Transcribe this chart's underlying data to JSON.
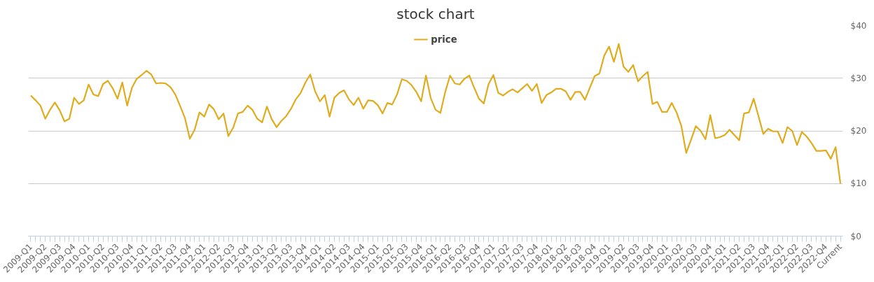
{
  "chart_data": {
    "type": "line",
    "title": "stock chart",
    "legend": "top",
    "categories": [
      "2009-Q1",
      null,
      null,
      "2009-Q2",
      null,
      null,
      "2009-Q3",
      null,
      null,
      "2009-Q4",
      null,
      null,
      "2010-Q1",
      null,
      null,
      "2010-Q2",
      null,
      null,
      "2010-Q3",
      null,
      null,
      "2010-Q4",
      null,
      null,
      "2011-Q1",
      null,
      null,
      "2011-Q2",
      null,
      null,
      "2011-Q3",
      null,
      null,
      "2011-Q4",
      null,
      null,
      "2012-Q1",
      null,
      null,
      "2012-Q2",
      null,
      null,
      "2012-Q3",
      null,
      null,
      "2012-Q4",
      null,
      null,
      "2013-Q1",
      null,
      null,
      "2013-Q2",
      null,
      null,
      "2013-Q3",
      null,
      null,
      "2013-Q4",
      null,
      null,
      "2014-Q1",
      null,
      null,
      "2014-Q2",
      null,
      null,
      "2014-Q3",
      null,
      null,
      "2014-Q4",
      null,
      null,
      "2015-Q1",
      null,
      null,
      "2015-Q2",
      null,
      null,
      "2015-Q3",
      null,
      null,
      "2015-Q4",
      null,
      null,
      "2016-Q1",
      null,
      null,
      "2016-Q2",
      null,
      null,
      "2016-Q3",
      null,
      null,
      "2016-Q4",
      null,
      null,
      "2017-Q1",
      null,
      null,
      "2017-Q2",
      null,
      null,
      "2017-Q3",
      null,
      null,
      "2017-Q4",
      null,
      null,
      "2018-Q1",
      null,
      null,
      "2018-Q2",
      null,
      null,
      "2018-Q3",
      null,
      null,
      "2018-Q4",
      null,
      null,
      "2019-Q1",
      null,
      null,
      "2019-Q2",
      null,
      null,
      "2019-Q3",
      null,
      null,
      "2019-Q4",
      null,
      null,
      "2020-Q1",
      null,
      null,
      "2020-Q2",
      null,
      null,
      "2020-Q3",
      null,
      null,
      "2020-Q4",
      null,
      null,
      "2021-Q1",
      null,
      null,
      "2021-Q2",
      null,
      null,
      "2021-Q3",
      null,
      null,
      "2021-Q4",
      null,
      null,
      "2022-Q1",
      null,
      null,
      "2022-Q2",
      null,
      null,
      "2022-Q3",
      null,
      null,
      "2022-Q4",
      null,
      null,
      "Current"
    ],
    "series": [
      {
        "name": "price",
        "color": "#e0ac1e",
        "values": [
          26.7,
          25.8,
          24.8,
          22.3,
          24.0,
          25.4,
          23.9,
          21.8,
          22.3,
          26.3,
          25.1,
          25.8,
          28.8,
          26.9,
          26.6,
          28.9,
          29.5,
          28.1,
          26.1,
          29.2,
          24.8,
          28.2,
          29.9,
          30.6,
          31.4,
          30.7,
          29.0,
          29.1,
          29.0,
          28.3,
          26.9,
          24.7,
          22.4,
          18.5,
          20.2,
          23.5,
          22.7,
          25.0,
          24.1,
          22.2,
          23.3,
          19.0,
          20.6,
          23.3,
          23.6,
          24.8,
          24.0,
          22.3,
          21.6,
          24.6,
          22.2,
          20.7,
          21.9,
          22.8,
          24.2,
          26.0,
          27.2,
          29.2,
          30.7,
          27.5,
          25.6,
          26.8,
          22.7,
          26.3,
          27.2,
          27.7,
          26.0,
          24.9,
          26.3,
          24.2,
          25.8,
          25.7,
          24.9,
          23.3,
          25.3,
          25.0,
          26.9,
          29.8,
          29.5,
          28.7,
          27.4,
          25.6,
          30.5,
          26.2,
          24.0,
          23.4,
          27.4,
          30.5,
          29.0,
          28.8,
          29.9,
          30.5,
          28.2,
          26.1,
          25.2,
          28.9,
          30.6,
          27.2,
          26.7,
          27.4,
          27.9,
          27.3,
          28.1,
          28.9,
          27.6,
          28.9,
          25.3,
          26.8,
          27.3,
          28.0,
          28.0,
          27.5,
          25.9,
          27.4,
          27.4,
          25.9,
          28.2,
          30.4,
          30.9,
          34.3,
          36.0,
          33.1,
          36.5,
          32.2,
          31.2,
          32.5,
          29.4,
          30.4,
          31.2,
          25.1,
          25.5,
          23.6,
          23.6,
          25.3,
          23.5,
          20.9,
          15.8,
          18.3,
          20.9,
          20.0,
          18.4,
          23.0,
          18.6,
          18.8,
          19.2,
          20.2,
          19.2,
          18.2,
          23.3,
          23.5,
          26.1,
          22.8,
          19.4,
          20.4,
          19.9,
          19.9,
          17.7,
          20.7,
          20.0,
          17.3,
          19.8,
          18.9,
          17.7,
          16.2,
          16.2,
          16.3,
          14.7,
          16.9,
          10.0
        ]
      }
    ],
    "ylim": [
      0,
      40
    ],
    "yticks": [
      {
        "value": 0,
        "label": "$0"
      },
      {
        "value": 10,
        "label": "$10"
      },
      {
        "value": 20,
        "label": "$20"
      },
      {
        "value": 30,
        "label": "$30"
      },
      {
        "value": 40,
        "label": "$40"
      }
    ],
    "grid": "y"
  }
}
